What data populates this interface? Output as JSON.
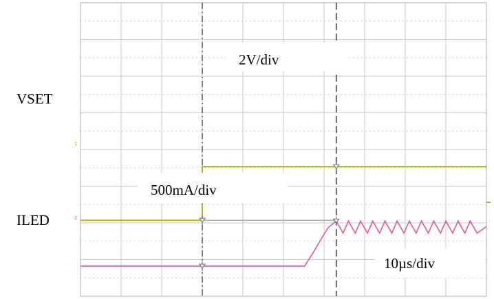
{
  "colors": {
    "ch1": "#b5b51a",
    "ch2": "#e0569c",
    "grid": "#c9c9c9",
    "cursor": "#3a3a3a"
  },
  "labels": {
    "vset": "VSET",
    "iled": "ILED",
    "v_scale": "2V/div",
    "i_scale": "500mA/div",
    "t_scale": "10µs/div"
  },
  "channel_markers": {
    "ch1": "1",
    "ch2": "2"
  },
  "chart_data": {
    "type": "line",
    "title": "",
    "xlabel": "",
    "ylabel": "",
    "grid": true,
    "divisions": {
      "x": 10,
      "y": 8
    },
    "scales": {
      "voltage": "2V/div",
      "current": "500mA/div",
      "time": "10µs/div"
    },
    "xlim": [
      0,
      10
    ],
    "ylim": [
      0,
      8
    ],
    "cursors_x": [
      3,
      6.3
    ],
    "series": [
      {
        "name": "VSET",
        "x": [
          0,
          3.0,
          3.0,
          10
        ],
        "y": [
          2.07,
          2.07,
          3.53,
          3.53
        ]
      },
      {
        "name": "ILED",
        "x": [
          0,
          5.52,
          5.75,
          5.95,
          6.1,
          6.3,
          6.47,
          6.6,
          6.77,
          6.9,
          7.07,
          7.2,
          7.37,
          7.5,
          7.67,
          7.8,
          7.97,
          8.1,
          8.27,
          8.4,
          8.57,
          8.7,
          8.87,
          9.0,
          9.17,
          9.3,
          9.47,
          9.6,
          9.77,
          10
        ],
        "y": [
          0.82,
          0.82,
          1.22,
          1.6,
          1.87,
          2.05,
          1.72,
          2.05,
          1.72,
          2.05,
          1.72,
          2.05,
          1.72,
          2.05,
          1.72,
          2.05,
          1.72,
          2.05,
          1.72,
          2.05,
          1.72,
          2.05,
          1.72,
          2.05,
          1.72,
          2.05,
          1.72,
          2.05,
          1.72,
          1.9
        ]
      }
    ]
  }
}
